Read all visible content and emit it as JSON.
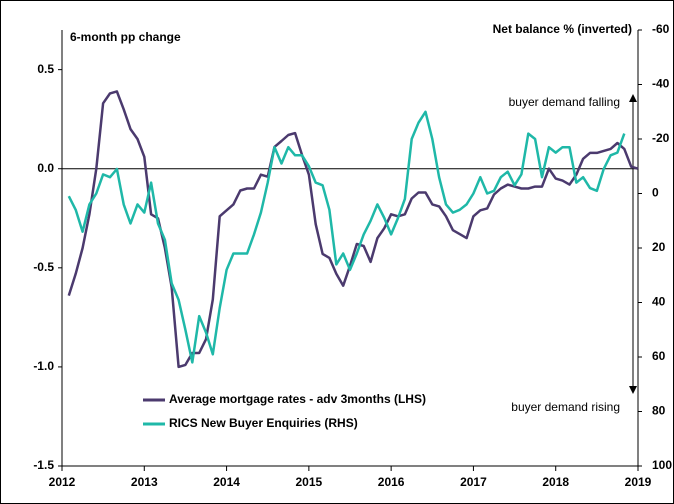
{
  "chart_data": {
    "type": "line",
    "ylabel": "6-month pp change",
    "y2label": "Net balance % (inverted)",
    "annotations": [
      "buyer demand falling",
      "buyer demand rising"
    ],
    "x": [
      2012.083,
      2012.167,
      2012.25,
      2012.333,
      2012.417,
      2012.5,
      2012.583,
      2012.667,
      2012.75,
      2012.833,
      2012.917,
      2013,
      2013.083,
      2013.167,
      2013.25,
      2013.333,
      2013.417,
      2013.5,
      2013.583,
      2013.667,
      2013.75,
      2013.833,
      2013.917,
      2014,
      2014.083,
      2014.167,
      2014.25,
      2014.333,
      2014.417,
      2014.5,
      2014.583,
      2014.667,
      2014.75,
      2014.833,
      2014.917,
      2015,
      2015.083,
      2015.167,
      2015.25,
      2015.333,
      2015.417,
      2015.5,
      2015.583,
      2015.667,
      2015.75,
      2015.833,
      2015.917,
      2016,
      2016.083,
      2016.167,
      2016.25,
      2016.333,
      2016.417,
      2016.5,
      2016.583,
      2016.667,
      2016.75,
      2016.833,
      2016.917,
      2017,
      2017.083,
      2017.167,
      2017.25,
      2017.333,
      2017.417,
      2017.5,
      2017.583,
      2017.667,
      2017.75,
      2017.833,
      2017.917,
      2018,
      2018.083,
      2018.167,
      2018.25,
      2018.333,
      2018.417,
      2018.5,
      2018.583,
      2018.667,
      2018.75,
      2018.833,
      2018.917,
      2019
    ],
    "series": [
      {
        "name": "Average mortgage rates - adv 3months (LHS)",
        "color": "#4b3a6e",
        "axis": "y",
        "values": [
          -0.64,
          -0.53,
          -0.4,
          -0.23,
          0,
          0.33,
          0.38,
          0.39,
          0.3,
          0.2,
          0.15,
          0.06,
          -0.23,
          -0.25,
          -0.4,
          -0.6,
          -1.0,
          -0.99,
          -0.93,
          -0.93,
          -0.86,
          -0.66,
          -0.24,
          -0.21,
          -0.18,
          -0.11,
          -0.1,
          -0.1,
          -0.03,
          -0.04,
          0.11,
          0.14,
          0.17,
          0.18,
          0.07,
          -0.03,
          -0.28,
          -0.43,
          -0.45,
          -0.53,
          -0.59,
          -0.49,
          -0.38,
          -0.39,
          -0.47,
          -0.35,
          -0.3,
          -0.23,
          -0.24,
          -0.23,
          -0.15,
          -0.12,
          -0.12,
          -0.18,
          -0.19,
          -0.24,
          -0.31,
          -0.33,
          -0.35,
          -0.24,
          -0.21,
          -0.2,
          -0.13,
          -0.1,
          -0.08,
          -0.09,
          -0.1,
          -0.1,
          -0.09,
          -0.09,
          0.0,
          -0.05,
          -0.06,
          -0.08,
          -0.03,
          0.05,
          0.08,
          0.08,
          0.09,
          0.1,
          0.13,
          0.1,
          0.01,
          0.0
        ]
      },
      {
        "name": "RICS New Buyer Enquiries (RHS)",
        "color": "#1fb8a8",
        "axis": "y2",
        "values": [
          1,
          6,
          14,
          4,
          0,
          -7,
          -6,
          -9,
          4,
          11,
          4,
          7,
          -4,
          11,
          17,
          33,
          39,
          50,
          62,
          45,
          51,
          59,
          42,
          28,
          22,
          22,
          22,
          15,
          7,
          -4,
          -17,
          -11,
          -17,
          -14,
          -14,
          -10,
          -4,
          -3,
          6,
          26,
          22,
          28,
          22,
          15,
          10,
          4,
          9,
          15,
          9,
          2,
          -20,
          -26,
          -30,
          -20,
          -6,
          4,
          7,
          6,
          4,
          0,
          -6,
          0,
          -1,
          -6,
          -8,
          -3,
          -7,
          -22,
          -20,
          -6,
          -17,
          -15,
          -17,
          -17,
          -4,
          -6,
          -2,
          -1,
          -9,
          -14,
          -15,
          -22,
          null,
          null
        ]
      }
    ],
    "xlim": [
      2012,
      2019
    ],
    "xticks": [
      2012,
      2013,
      2014,
      2015,
      2016,
      2017,
      2018,
      2019
    ],
    "ylim": [
      -1.5,
      0.7
    ],
    "yticks": [
      0.5,
      {
        "value": 0,
        "label": "0.0"
      },
      -0.5,
      {
        "value": -1,
        "label": "-1.0"
      },
      -1.5
    ],
    "y2lim": [
      100,
      -60
    ],
    "y2ticks": [
      -60,
      -40,
      -20,
      0,
      20,
      40,
      60,
      80,
      100
    ],
    "grid": false,
    "legend": "lower left"
  }
}
